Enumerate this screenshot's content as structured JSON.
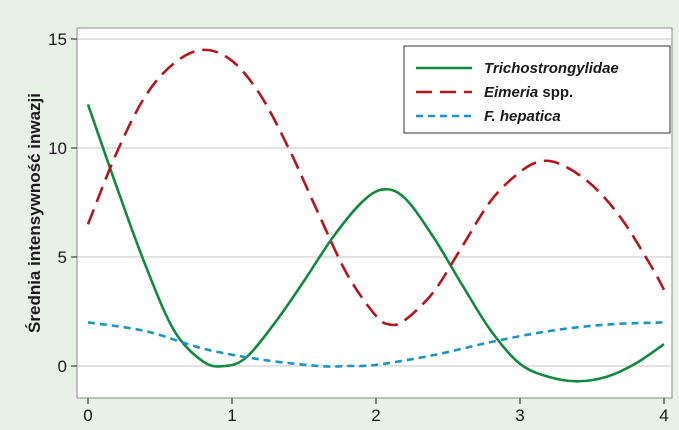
{
  "chart_data": {
    "type": "line",
    "title": "",
    "xlabel": "",
    "ylabel": "Średnia intensywność inwazji",
    "xlim": [
      0,
      4
    ],
    "ylim": [
      0,
      15
    ],
    "xticks": [
      0,
      1,
      2,
      3,
      4
    ],
    "yticks": [
      0,
      5,
      10,
      15
    ],
    "xtick_labels": [
      "0",
      "1",
      "2",
      "3",
      "4"
    ],
    "ytick_labels": [
      "0",
      "5",
      "10",
      "15"
    ],
    "grid": "horizontal",
    "legend_position": "top-right",
    "series": [
      {
        "name": "Trichostrongylidae",
        "legend_italic": "Trichostrongylidae",
        "legend_plain": "",
        "color": "#118a3f",
        "dash": "solid",
        "points": [
          [
            0,
            12.0
          ],
          [
            0.2,
            8.2
          ],
          [
            0.4,
            4.6
          ],
          [
            0.6,
            1.6
          ],
          [
            0.8,
            0.2
          ],
          [
            0.95,
            0.0
          ],
          [
            1.1,
            0.4
          ],
          [
            1.3,
            2.0
          ],
          [
            1.5,
            3.9
          ],
          [
            1.7,
            5.9
          ],
          [
            1.9,
            7.5
          ],
          [
            2.05,
            8.1
          ],
          [
            2.2,
            7.7
          ],
          [
            2.4,
            5.9
          ],
          [
            2.6,
            3.7
          ],
          [
            2.8,
            1.6
          ],
          [
            3.0,
            0.1
          ],
          [
            3.2,
            -0.5
          ],
          [
            3.4,
            -0.7
          ],
          [
            3.6,
            -0.5
          ],
          [
            3.8,
            0.1
          ],
          [
            4.0,
            1.0
          ]
        ]
      },
      {
        "name": "Eimeria spp.",
        "legend_italic": "Eimeria",
        "legend_plain": " spp.",
        "color": "#b3161c",
        "dash": "long-dash",
        "points": [
          [
            0,
            6.5
          ],
          [
            0.2,
            9.8
          ],
          [
            0.4,
            12.4
          ],
          [
            0.6,
            13.9
          ],
          [
            0.8,
            14.5
          ],
          [
            1.0,
            14.0
          ],
          [
            1.2,
            12.4
          ],
          [
            1.4,
            9.9
          ],
          [
            1.6,
            7.0
          ],
          [
            1.8,
            4.2
          ],
          [
            2.0,
            2.3
          ],
          [
            2.1,
            1.9
          ],
          [
            2.2,
            2.1
          ],
          [
            2.4,
            3.4
          ],
          [
            2.6,
            5.5
          ],
          [
            2.8,
            7.6
          ],
          [
            3.0,
            8.9
          ],
          [
            3.15,
            9.4
          ],
          [
            3.3,
            9.2
          ],
          [
            3.5,
            8.3
          ],
          [
            3.7,
            6.8
          ],
          [
            3.9,
            4.7
          ],
          [
            4.0,
            3.5
          ]
        ]
      },
      {
        "name": "F. hepatica",
        "legend_italic": "F. hepatica",
        "legend_plain": "",
        "color": "#1a94c4",
        "dash": "short-dash",
        "points": [
          [
            0,
            2.0
          ],
          [
            0.4,
            1.6
          ],
          [
            0.8,
            0.8
          ],
          [
            1.2,
            0.3
          ],
          [
            1.6,
            0.0
          ],
          [
            1.8,
            0.0
          ],
          [
            2.0,
            0.05
          ],
          [
            2.4,
            0.5
          ],
          [
            2.8,
            1.1
          ],
          [
            3.2,
            1.6
          ],
          [
            3.6,
            1.9
          ],
          [
            4.0,
            2.0
          ]
        ]
      }
    ]
  }
}
